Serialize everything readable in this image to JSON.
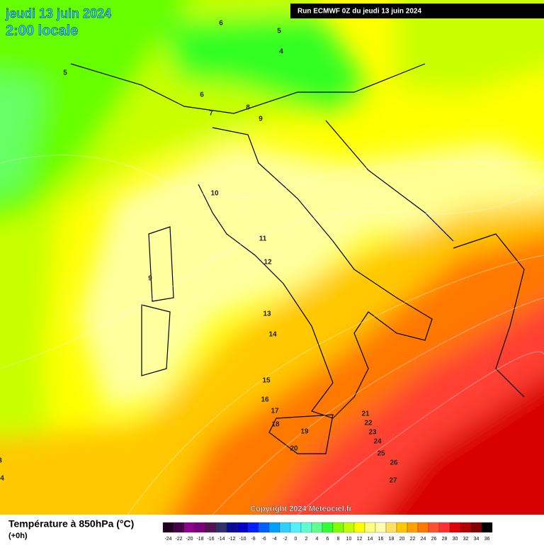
{
  "header": {
    "date": "jeudi 13 juin 2024",
    "time": "2:00 locale",
    "run": "Run ECMWF 0Z du jeudi 13 juin 2024"
  },
  "map": {
    "contour_labels": [
      "6",
      "5",
      "4",
      "5",
      "6",
      "7",
      "8",
      "9",
      "10",
      "11",
      "12",
      "9",
      "13",
      "14",
      "15",
      "16",
      "17",
      "18",
      "19",
      "20",
      "21",
      "22",
      "23",
      "24",
      "25",
      "26",
      "27",
      "3",
      "4"
    ],
    "copyright": "Copyright 2024 Meteociel.fr"
  },
  "footer": {
    "title": "Température à 850hPa (°C)",
    "lead": "(+0h)",
    "scale": [
      {
        "label": "-24",
        "color": "#200020"
      },
      {
        "label": "-22",
        "color": "#46004b"
      },
      {
        "label": "-20",
        "color": "#8c008c"
      },
      {
        "label": "-18",
        "color": "#780078"
      },
      {
        "label": "-16",
        "color": "#501450"
      },
      {
        "label": "-14",
        "color": "#30306a"
      },
      {
        "label": "-12",
        "color": "#0a0a96"
      },
      {
        "label": "-10",
        "color": "#0000c8"
      },
      {
        "label": "-8",
        "color": "#0020ff"
      },
      {
        "label": "-6",
        "color": "#0060ff"
      },
      {
        "label": "-4",
        "color": "#00a0ff"
      },
      {
        "label": "-2",
        "color": "#30d0ff"
      },
      {
        "label": "0",
        "color": "#50f0ff"
      },
      {
        "label": "2",
        "color": "#60ffd0"
      },
      {
        "label": "4",
        "color": "#60ff90"
      },
      {
        "label": "6",
        "color": "#30ff30"
      },
      {
        "label": "8",
        "color": "#80ff00"
      },
      {
        "label": "10",
        "color": "#c0ff00"
      },
      {
        "label": "12",
        "color": "#ffff00"
      },
      {
        "label": "14",
        "color": "#ffff80"
      },
      {
        "label": "16",
        "color": "#ffffb0"
      },
      {
        "label": "18",
        "color": "#ffe060"
      },
      {
        "label": "20",
        "color": "#ffc800"
      },
      {
        "label": "22",
        "color": "#ffa000"
      },
      {
        "label": "24",
        "color": "#ff7800"
      },
      {
        "label": "26",
        "color": "#ff5030"
      },
      {
        "label": "28",
        "color": "#ff3030"
      },
      {
        "label": "30",
        "color": "#e00000"
      },
      {
        "label": "32",
        "color": "#b40000"
      },
      {
        "label": "34",
        "color": "#800000"
      },
      {
        "label": "36",
        "color": "#000000"
      }
    ]
  }
}
